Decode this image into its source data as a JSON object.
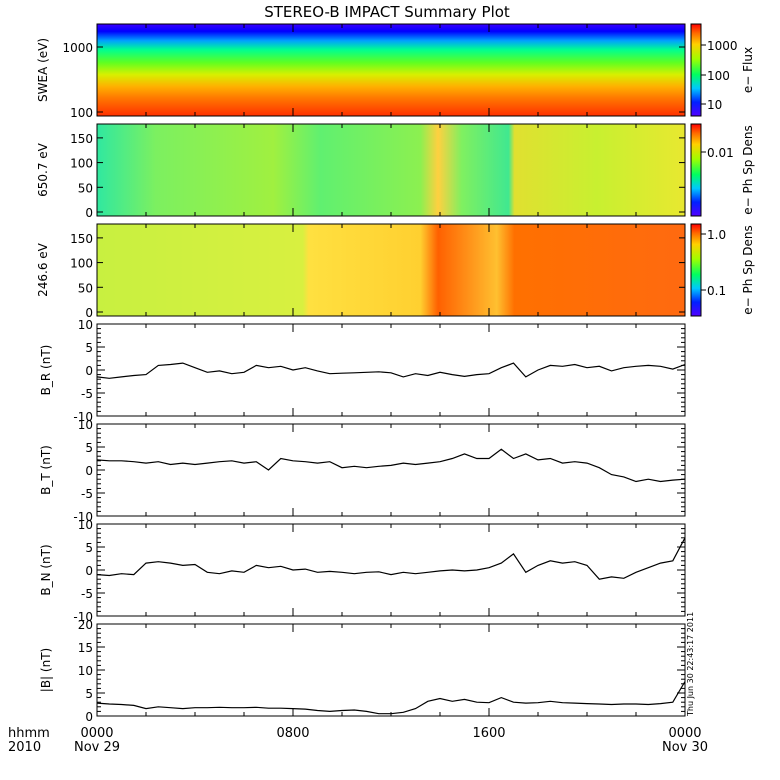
{
  "title": "STEREO-B IMPACT Summary Plot",
  "timestamp": "Thu Jun 30 22:43:17 2011",
  "time_axis": {
    "row1_label": "hhmm",
    "row2_label": "2010",
    "ticks": [
      {
        "hhmm": "0000",
        "date": "Nov 29"
      },
      {
        "hhmm": "0800",
        "date": ""
      },
      {
        "hhmm": "1600",
        "date": ""
      },
      {
        "hhmm": "0000",
        "date": "Nov 30"
      }
    ]
  },
  "spectrograms": [
    {
      "ylabel": "SWEA (eV)",
      "yticks": [
        "1000",
        "100"
      ],
      "cbar_label": "e− Flux",
      "cbar_ticks": [
        "1000",
        "100",
        "10"
      ]
    },
    {
      "ylabel": "650.7 eV",
      "yticks": [
        "150",
        "100",
        "50",
        "0"
      ],
      "cbar_label": "e− Ph Sp Dens",
      "cbar_ticks": [
        "0.01"
      ]
    },
    {
      "ylabel": "246.6 eV",
      "yticks": [
        "150",
        "100",
        "50",
        "0"
      ],
      "cbar_label": "e− Ph Sp Dens",
      "cbar_ticks": [
        "1.0",
        "0.1"
      ]
    }
  ],
  "chart_data": [
    {
      "type": "line",
      "name": "B_R",
      "ylabel": "B_R (nT)",
      "ylim": [
        -10,
        10
      ],
      "yticks": [
        "10",
        "5",
        "0",
        "-5",
        "-10"
      ],
      "x_hours": [
        0,
        0.5,
        1,
        1.5,
        2,
        2.5,
        3,
        3.5,
        4,
        4.5,
        5,
        5.5,
        6,
        6.5,
        7,
        7.5,
        8,
        8.5,
        9,
        9.5,
        10,
        10.5,
        11,
        11.5,
        12,
        12.5,
        13,
        13.5,
        14,
        14.5,
        15,
        15.5,
        16,
        16.5,
        17,
        17.5,
        18,
        18.5,
        19,
        19.5,
        20,
        20.5,
        21,
        21.5,
        22,
        22.5,
        23,
        23.5,
        24
      ],
      "values": [
        -1.5,
        -1.8,
        -1.5,
        -1.2,
        -1,
        1,
        1.2,
        1.5,
        0.5,
        -0.5,
        -0.2,
        -0.8,
        -0.5,
        1,
        0.5,
        0.8,
        0,
        0.5,
        -0.2,
        -0.8,
        -0.7,
        -0.6,
        -0.5,
        -0.4,
        -0.6,
        -1.5,
        -0.8,
        -1.2,
        -0.5,
        -1,
        -1.4,
        -1,
        -0.8,
        0.5,
        1.5,
        -1.5,
        0,
        1,
        0.8,
        1.2,
        0.5,
        0.8,
        -0.2,
        0.5,
        0.8,
        1,
        0.8,
        0.2,
        1.2
      ]
    },
    {
      "type": "line",
      "name": "B_T",
      "ylabel": "B_T (nT)",
      "ylim": [
        -10,
        10
      ],
      "yticks": [
        "10",
        "5",
        "0",
        "-5",
        "-10"
      ],
      "x_hours": [
        0,
        0.5,
        1,
        1.5,
        2,
        2.5,
        3,
        3.5,
        4,
        4.5,
        5,
        5.5,
        6,
        6.5,
        7,
        7.5,
        8,
        8.5,
        9,
        9.5,
        10,
        10.5,
        11,
        11.5,
        12,
        12.5,
        13,
        13.5,
        14,
        14.5,
        15,
        15.5,
        16,
        16.5,
        17,
        17.5,
        18,
        18.5,
        19,
        19.5,
        20,
        20.5,
        21,
        21.5,
        22,
        22.5,
        23,
        23.5,
        24
      ],
      "values": [
        2.2,
        2,
        2,
        1.8,
        1.5,
        1.8,
        1.2,
        1.5,
        1.2,
        1.5,
        1.8,
        2,
        1.5,
        1.8,
        0,
        2.5,
        2,
        1.8,
        1.5,
        1.8,
        0.5,
        0.8,
        0.5,
        0.8,
        1,
        1.5,
        1.2,
        1.5,
        1.8,
        2.5,
        3.5,
        2.5,
        2.5,
        4.5,
        2.5,
        3.5,
        2.2,
        2.5,
        1.5,
        1.8,
        1.5,
        0.5,
        -1,
        -1.5,
        -2.5,
        -2,
        -2.5,
        -2.2,
        -2
      ]
    },
    {
      "type": "line",
      "name": "B_N",
      "ylabel": "B_N (nT)",
      "ylim": [
        -10,
        10
      ],
      "yticks": [
        "10",
        "5",
        "0",
        "-5",
        "-10"
      ],
      "x_hours": [
        0,
        0.5,
        1,
        1.5,
        2,
        2.5,
        3,
        3.5,
        4,
        4.5,
        5,
        5.5,
        6,
        6.5,
        7,
        7.5,
        8,
        8.5,
        9,
        9.5,
        10,
        10.5,
        11,
        11.5,
        12,
        12.5,
        13,
        13.5,
        14,
        14.5,
        15,
        15.5,
        16,
        16.5,
        17,
        17.5,
        18,
        18.5,
        19,
        19.5,
        20,
        20.5,
        21,
        21.5,
        22,
        22.5,
        23,
        23.5,
        24
      ],
      "values": [
        -1,
        -1.2,
        -0.8,
        -1,
        1.5,
        1.8,
        1.5,
        1,
        1.2,
        -0.5,
        -0.8,
        -0.2,
        -0.5,
        1,
        0.5,
        0.8,
        0,
        0.2,
        -0.5,
        -0.3,
        -0.5,
        -0.8,
        -0.5,
        -0.4,
        -1,
        -0.5,
        -0.8,
        -0.5,
        -0.2,
        0,
        -0.2,
        0,
        0.5,
        1.5,
        3.5,
        -0.5,
        1,
        2,
        1.5,
        1.8,
        1,
        -2,
        -1.5,
        -1.8,
        -0.5,
        0.5,
        1.5,
        2,
        7
      ]
    },
    {
      "type": "line",
      "name": "|B|",
      "ylabel": "|B| (nT)",
      "ylim": [
        0,
        20
      ],
      "yticks": [
        "20",
        "15",
        "10",
        "5",
        "0"
      ],
      "x_hours": [
        0,
        0.5,
        1,
        1.5,
        2,
        2.5,
        3,
        3.5,
        4,
        4.5,
        5,
        5.5,
        6,
        6.5,
        7,
        7.5,
        8,
        8.5,
        9,
        9.5,
        10,
        10.5,
        11,
        11.5,
        12,
        12.5,
        13,
        13.5,
        14,
        14.5,
        15,
        15.5,
        16,
        16.5,
        17,
        17.5,
        18,
        18.5,
        19,
        19.5,
        20,
        20.5,
        21,
        21.5,
        22,
        22.5,
        23,
        23.5,
        24
      ],
      "values": [
        2.8,
        2.6,
        2.5,
        2.3,
        1.6,
        2,
        1.8,
        1.6,
        1.8,
        1.8,
        1.9,
        1.8,
        1.8,
        1.9,
        1.7,
        1.7,
        1.6,
        1.5,
        1.2,
        1,
        1.2,
        1.3,
        1,
        0.5,
        0.5,
        0.8,
        1.6,
        3.2,
        3.8,
        3.2,
        3.6,
        3,
        2.9,
        4,
        3,
        2.8,
        2.9,
        3.2,
        2.9,
        2.8,
        2.7,
        2.6,
        2.5,
        2.6,
        2.6,
        2.5,
        2.7,
        3,
        7.5
      ]
    }
  ]
}
